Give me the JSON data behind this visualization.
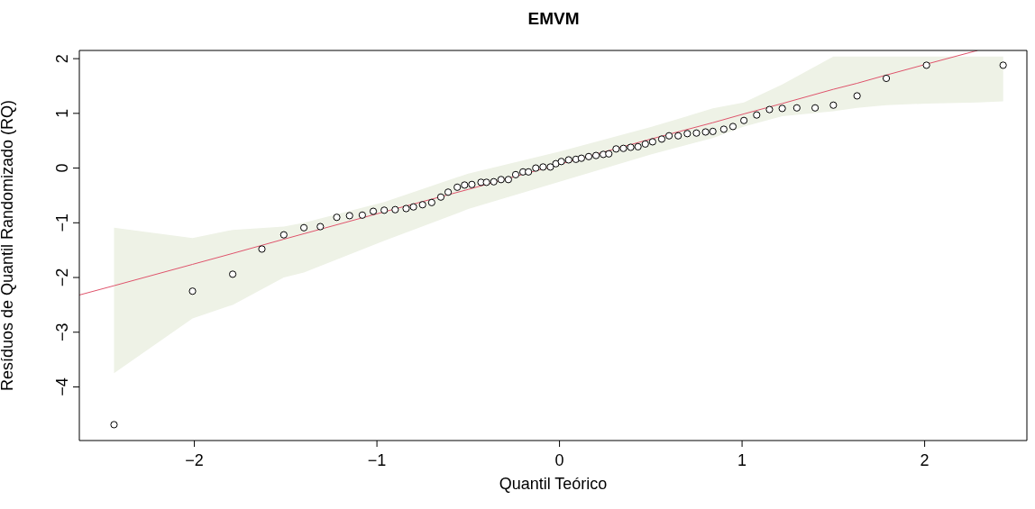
{
  "chart_data": {
    "type": "scatter",
    "title": "EMVM",
    "xlabel": "Quantil Teórico",
    "ylabel": "Resíduos de Quantil Randomizado (RQ)",
    "xlim": [
      -2.63,
      2.56
    ],
    "ylim": [
      -4.98,
      2.15
    ],
    "xticks": [
      {
        "value": -2,
        "label": "−2"
      },
      {
        "value": -1,
        "label": "−1"
      },
      0,
      1,
      2
    ],
    "yticks": [
      {
        "value": -4,
        "label": "−4"
      },
      {
        "value": -3,
        "label": "−3"
      },
      {
        "value": -2,
        "label": "−2"
      },
      {
        "value": -1,
        "label": "−1"
      },
      0,
      1,
      2
    ],
    "grid": false,
    "series": [
      {
        "type": "line",
        "color": "#df536b",
        "line_style": "solid",
        "marker": "none",
        "x": [
          -2.63,
          -2.44,
          -2.01,
          -1.79,
          -1.51,
          -1.4,
          -0.96,
          -0.5,
          0,
          0.5,
          0.84,
          1.01,
          1.22,
          1.5,
          1.63,
          1.79,
          2.01,
          2.29,
          2.43
        ],
        "values": [
          -2.32,
          -2.15,
          -1.76,
          -1.56,
          -1.3,
          -1.2,
          -0.8,
          -0.39,
          0.07,
          0.53,
          0.83,
          0.99,
          1.18,
          1.44,
          1.55,
          1.7,
          1.9,
          2.15,
          null
        ],
        "lower": [
          null,
          -3.75,
          -2.75,
          -2.5,
          -2.0,
          -1.91,
          -1.33,
          -0.75,
          -0.25,
          0.25,
          0.55,
          0.76,
          0.95,
          1.04,
          1.1,
          1.15,
          1.18,
          1.2,
          1.22
        ],
        "upper": [
          null,
          -1.09,
          -1.28,
          -1.13,
          -1.07,
          -1.0,
          -0.62,
          -0.1,
          0.3,
          0.75,
          1.09,
          1.2,
          1.53,
          2.04,
          2.04,
          2.04,
          2.04,
          2.04,
          2.04
        ]
      },
      {
        "color": "#000000",
        "marker": "circle",
        "x": [
          -2.44,
          -2.01,
          -1.79,
          -1.63,
          -1.51,
          -1.4,
          -1.31,
          -1.22,
          -1.15,
          -1.08,
          -1.02,
          -0.96,
          -0.9,
          -0.84,
          -0.8,
          -0.75,
          -0.7,
          -0.65,
          -0.61,
          -0.56,
          -0.52,
          -0.48,
          -0.43,
          -0.4,
          -0.36,
          -0.32,
          -0.28,
          -0.24,
          -0.2,
          -0.17,
          -0.13,
          -0.09,
          -0.05,
          -0.02,
          0.01,
          0.05,
          0.09,
          0.12,
          0.16,
          0.2,
          0.24,
          0.27,
          0.31,
          0.35,
          0.39,
          0.43,
          0.47,
          0.51,
          0.56,
          0.6,
          0.65,
          0.7,
          0.75,
          0.8,
          0.84,
          0.9,
          0.95,
          1.01,
          1.08,
          1.15,
          1.22,
          1.3,
          1.4,
          1.5,
          1.63,
          1.79,
          2.01,
          2.43
        ],
        "values": [
          -4.69,
          -2.25,
          -1.94,
          -1.48,
          -1.22,
          -1.09,
          -1.07,
          -0.9,
          -0.87,
          -0.86,
          -0.79,
          -0.77,
          -0.76,
          -0.74,
          -0.71,
          -0.67,
          -0.63,
          -0.53,
          -0.44,
          -0.35,
          -0.31,
          -0.3,
          -0.26,
          -0.26,
          -0.25,
          -0.21,
          -0.21,
          -0.12,
          -0.07,
          -0.07,
          0,
          0.02,
          0.02,
          0.08,
          0.12,
          0.15,
          0.16,
          0.18,
          0.21,
          0.23,
          0.25,
          0.26,
          0.35,
          0.36,
          0.38,
          0.39,
          0.44,
          0.48,
          0.53,
          0.59,
          0.59,
          0.63,
          0.64,
          0.66,
          0.67,
          0.71,
          0.76,
          0.87,
          0.97,
          1.07,
          1.09,
          1.1,
          1.1,
          1.15,
          1.32,
          1.64,
          1.88,
          1.88
        ]
      }
    ]
  }
}
